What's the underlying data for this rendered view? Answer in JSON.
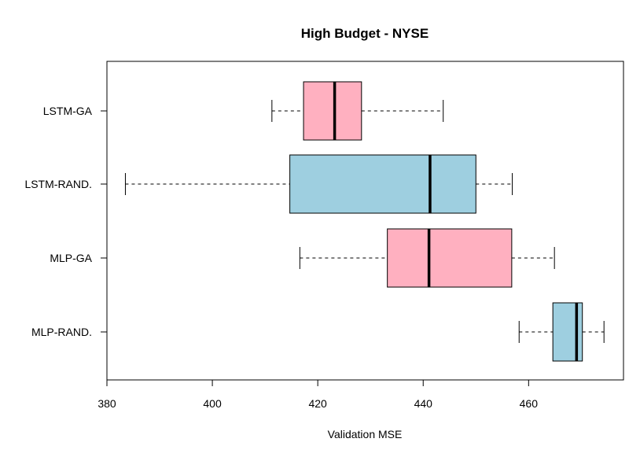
{
  "chart_data": {
    "type": "boxplot",
    "orientation": "horizontal",
    "title": "High Budget - NYSE",
    "xlabel": "Validation MSE",
    "ylabel": "",
    "xlim": [
      380,
      478
    ],
    "xticks": [
      380,
      400,
      420,
      440,
      460
    ],
    "grid": false,
    "colors": {
      "pink": "#ffb0c0",
      "blue": "#9ecfe0"
    },
    "categories": [
      "LSTM-GA",
      "LSTM-RAND.",
      "MLP-GA",
      "MLP-RAND."
    ],
    "boxes": [
      {
        "label": "LSTM-GA",
        "whisker_low": 411.3,
        "q1": 417.3,
        "median": 423.2,
        "q3": 428.3,
        "whisker_high": 443.8,
        "color": "#ffb0c0"
      },
      {
        "label": "LSTM-RAND.",
        "whisker_low": 383.5,
        "q1": 414.7,
        "median": 441.3,
        "q3": 450.0,
        "whisker_high": 456.9,
        "color": "#9ecfe0"
      },
      {
        "label": "MLP-GA",
        "whisker_low": 416.6,
        "q1": 433.2,
        "median": 441.1,
        "q3": 456.8,
        "whisker_high": 464.9,
        "color": "#ffb0c0"
      },
      {
        "label": "MLP-RAND.",
        "whisker_low": 458.2,
        "q1": 464.6,
        "median": 469.1,
        "q3": 470.2,
        "whisker_high": 474.3,
        "color": "#9ecfe0"
      }
    ]
  }
}
